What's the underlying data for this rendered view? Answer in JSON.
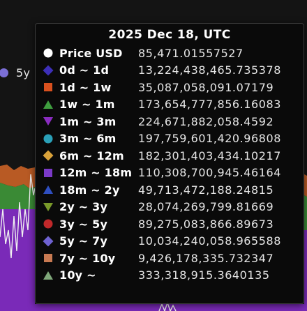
{
  "legend_peek": {
    "label": "5y",
    "color": "#7b6fd6"
  },
  "tooltip": {
    "title": "2025 Dec 18, UTC",
    "rows": [
      {
        "name": "Price USD",
        "value": "85,471.01557527",
        "shape": "circle",
        "color": "#ffffff"
      },
      {
        "name": "0d ~ 1d",
        "value": "13,224,438,465.735378",
        "shape": "diamond",
        "color": "#3d2fb8"
      },
      {
        "name": "1d ~ 1w",
        "value": "35,087,058,091.07179",
        "shape": "square",
        "color": "#d8501e"
      },
      {
        "name": "1w ~ 1m",
        "value": "173,654,777,856.16083",
        "shape": "triangle-up",
        "color": "#3f9e3f"
      },
      {
        "name": "1m ~ 3m",
        "value": "224,671,882,058.4592",
        "shape": "triangle-down",
        "color": "#8a2cc0"
      },
      {
        "name": "3m ~ 6m",
        "value": "197,759,601,420.96808",
        "shape": "circle",
        "color": "#2aa0b8"
      },
      {
        "name": "6m ~ 12m",
        "value": "182,301,403,434.10217",
        "shape": "diamond",
        "color": "#d9a23a"
      },
      {
        "name": "12m ~ 18m",
        "value": "110,308,700,945.46164",
        "shape": "square",
        "color": "#7b3ac8"
      },
      {
        "name": "18m ~ 2y",
        "value": "49,713,472,188.24815",
        "shape": "triangle-up",
        "color": "#2f4fc0"
      },
      {
        "name": "2y ~ 3y",
        "value": "28,074,269,799.81669",
        "shape": "triangle-down",
        "color": "#7a9a2a"
      },
      {
        "name": "3y ~ 5y",
        "value": "89,275,083,866.89673",
        "shape": "circle",
        "color": "#c0282a"
      },
      {
        "name": "5y ~ 7y",
        "value": "10,034,240,058.965588",
        "shape": "diamond",
        "color": "#6f62d2"
      },
      {
        "name": "7y ~ 10y",
        "value": "9,426,178,335.732347",
        "shape": "square",
        "color": "#c87a52"
      },
      {
        "name": "10y ~",
        "value": "333,318,915.3640135",
        "shape": "triangle-up",
        "color": "#7fa87a"
      }
    ]
  }
}
